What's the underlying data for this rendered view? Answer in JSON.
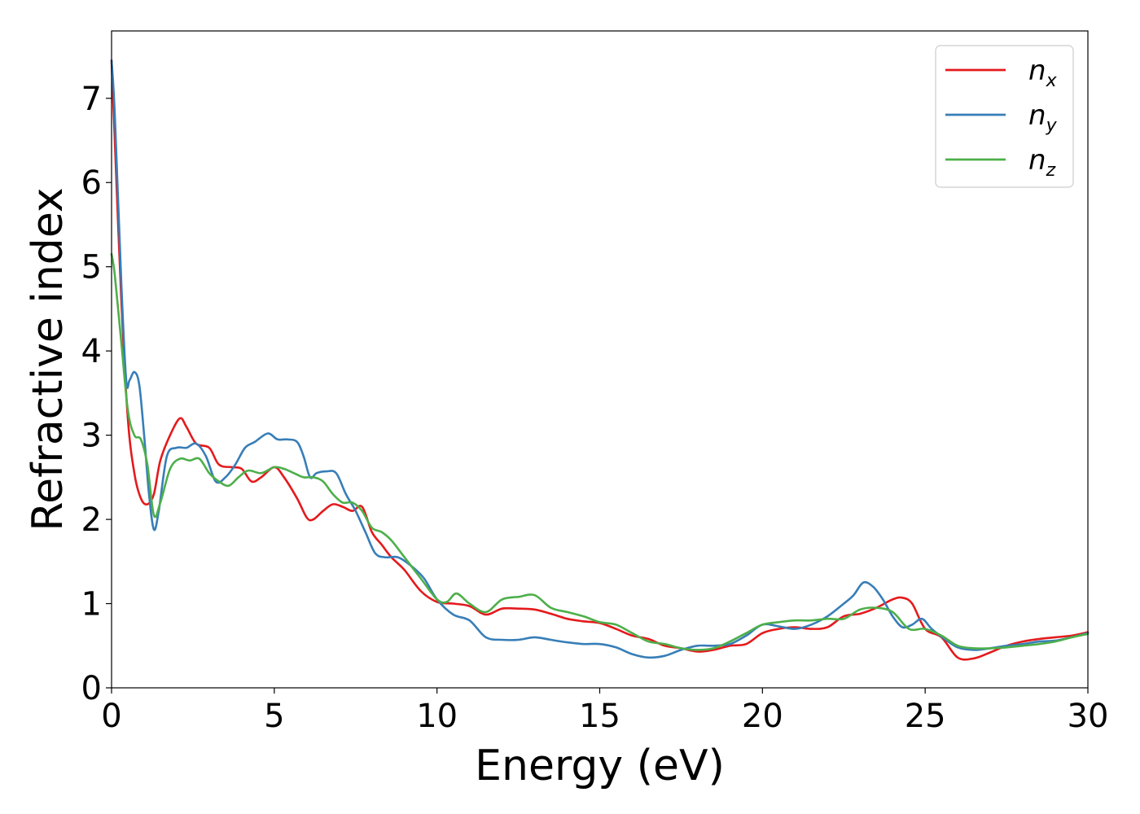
{
  "chart_data": {
    "type": "line",
    "title": "",
    "xlabel": "Energy (eV)",
    "ylabel": "Refractive index",
    "xlim": [
      0,
      30
    ],
    "ylim": [
      0,
      7.8
    ],
    "xticks": [
      0,
      5,
      10,
      15,
      20,
      25,
      30
    ],
    "yticks": [
      0,
      1,
      2,
      3,
      4,
      5,
      6,
      7
    ],
    "grid": false,
    "legend_position": "top-right",
    "series": [
      {
        "name": "n",
        "subscript": "x",
        "color": "#e41a1c",
        "x": [
          0,
          0.1,
          0.3,
          0.5,
          0.7,
          0.9,
          1.1,
          1.3,
          1.5,
          1.8,
          2.1,
          2.3,
          2.6,
          3.0,
          3.3,
          3.7,
          4.0,
          4.3,
          4.6,
          5.0,
          5.3,
          5.7,
          6.0,
          6.2,
          6.5,
          6.8,
          7.1,
          7.4,
          7.7,
          8.0,
          8.3,
          8.6,
          9.0,
          9.5,
          10.0,
          10.5,
          11.0,
          11.5,
          12.0,
          12.5,
          13.0,
          13.5,
          14.0,
          14.5,
          15.0,
          15.5,
          16.0,
          16.5,
          17.0,
          17.5,
          18.0,
          18.5,
          19.0,
          19.5,
          20.0,
          20.5,
          21.0,
          21.5,
          22.0,
          22.5,
          23.0,
          23.5,
          24.0,
          24.3,
          24.6,
          25.0,
          25.5,
          26.0,
          26.5,
          27.0,
          27.5,
          28.0,
          28.5,
          29.0,
          29.5,
          30.0
        ],
        "y": [
          7.45,
          6.5,
          4.6,
          3.2,
          2.55,
          2.25,
          2.18,
          2.3,
          2.7,
          3.0,
          3.2,
          3.1,
          2.9,
          2.85,
          2.65,
          2.62,
          2.6,
          2.45,
          2.5,
          2.62,
          2.5,
          2.25,
          2.02,
          2.0,
          2.1,
          2.18,
          2.15,
          2.1,
          2.15,
          1.85,
          1.7,
          1.55,
          1.4,
          1.15,
          1.02,
          1.0,
          0.97,
          0.87,
          0.94,
          0.94,
          0.93,
          0.88,
          0.82,
          0.79,
          0.77,
          0.7,
          0.62,
          0.58,
          0.5,
          0.47,
          0.43,
          0.45,
          0.5,
          0.52,
          0.65,
          0.7,
          0.72,
          0.7,
          0.72,
          0.85,
          0.88,
          0.95,
          1.05,
          1.07,
          1.0,
          0.7,
          0.6,
          0.36,
          0.35,
          0.42,
          0.5,
          0.55,
          0.58,
          0.6,
          0.62,
          0.66
        ]
      },
      {
        "name": "n",
        "subscript": "y",
        "color": "#377eb8",
        "x": [
          0,
          0.1,
          0.3,
          0.45,
          0.55,
          0.7,
          0.85,
          1.0,
          1.15,
          1.3,
          1.45,
          1.7,
          2.0,
          2.3,
          2.6,
          2.9,
          3.2,
          3.5,
          3.8,
          4.1,
          4.4,
          4.8,
          5.1,
          5.4,
          5.7,
          5.9,
          6.1,
          6.3,
          6.6,
          6.9,
          7.2,
          7.5,
          7.8,
          8.1,
          8.4,
          8.8,
          9.2,
          9.6,
          10.0,
          10.5,
          11.0,
          11.5,
          12.0,
          12.5,
          13.0,
          13.5,
          14.0,
          14.5,
          15.0,
          15.5,
          16.0,
          16.5,
          17.0,
          17.5,
          18.0,
          18.5,
          19.0,
          19.5,
          20.0,
          20.5,
          21.0,
          21.5,
          22.0,
          22.5,
          22.8,
          23.1,
          23.4,
          23.7,
          24.0,
          24.3,
          24.6,
          24.9,
          25.2,
          25.6,
          26.0,
          26.5,
          27.0,
          27.5,
          28.0,
          28.5,
          29.0,
          29.5,
          30.0
        ],
        "y": [
          7.45,
          6.8,
          4.8,
          3.65,
          3.65,
          3.75,
          3.6,
          3.0,
          2.3,
          1.88,
          2.1,
          2.75,
          2.85,
          2.85,
          2.9,
          2.75,
          2.45,
          2.5,
          2.65,
          2.85,
          2.92,
          3.02,
          2.95,
          2.95,
          2.92,
          2.75,
          2.5,
          2.55,
          2.57,
          2.55,
          2.3,
          2.1,
          1.85,
          1.6,
          1.55,
          1.55,
          1.45,
          1.3,
          1.05,
          0.87,
          0.8,
          0.6,
          0.57,
          0.57,
          0.6,
          0.57,
          0.54,
          0.52,
          0.52,
          0.48,
          0.4,
          0.36,
          0.38,
          0.45,
          0.5,
          0.5,
          0.52,
          0.62,
          0.75,
          0.73,
          0.7,
          0.75,
          0.85,
          1.0,
          1.1,
          1.25,
          1.2,
          1.05,
          0.85,
          0.72,
          0.75,
          0.82,
          0.7,
          0.58,
          0.48,
          0.45,
          0.47,
          0.5,
          0.52,
          0.55,
          0.56,
          0.6,
          0.65
        ]
      },
      {
        "name": "n",
        "subscript": "z",
        "color": "#4daf4a",
        "x": [
          0,
          0.1,
          0.3,
          0.5,
          0.7,
          0.9,
          1.1,
          1.3,
          1.5,
          1.8,
          2.1,
          2.4,
          2.7,
          3.0,
          3.3,
          3.6,
          3.9,
          4.2,
          4.6,
          5.0,
          5.3,
          5.6,
          5.9,
          6.2,
          6.5,
          6.8,
          7.1,
          7.4,
          7.7,
          8.0,
          8.3,
          8.6,
          9.0,
          9.5,
          10.0,
          10.3,
          10.6,
          11.0,
          11.5,
          12.0,
          12.5,
          13.0,
          13.5,
          14.0,
          14.5,
          15.0,
          15.5,
          16.0,
          16.5,
          17.0,
          17.5,
          18.0,
          18.5,
          19.0,
          19.5,
          20.0,
          20.5,
          21.0,
          21.5,
          22.0,
          22.5,
          23.0,
          23.5,
          24.0,
          24.5,
          25.0,
          25.5,
          26.0,
          26.5,
          27.0,
          27.5,
          28.0,
          28.5,
          29.0,
          29.5,
          30.0
        ],
        "y": [
          5.15,
          4.9,
          4.1,
          3.3,
          3.0,
          2.95,
          2.65,
          2.05,
          2.2,
          2.6,
          2.72,
          2.7,
          2.72,
          2.55,
          2.45,
          2.4,
          2.5,
          2.58,
          2.55,
          2.62,
          2.6,
          2.55,
          2.5,
          2.5,
          2.45,
          2.3,
          2.2,
          2.2,
          2.1,
          1.9,
          1.85,
          1.75,
          1.55,
          1.3,
          1.05,
          1.02,
          1.12,
          1.0,
          0.9,
          1.05,
          1.08,
          1.1,
          0.95,
          0.9,
          0.85,
          0.78,
          0.75,
          0.65,
          0.55,
          0.52,
          0.47,
          0.45,
          0.47,
          0.55,
          0.65,
          0.75,
          0.78,
          0.8,
          0.8,
          0.82,
          0.82,
          0.93,
          0.95,
          0.9,
          0.7,
          0.7,
          0.62,
          0.5,
          0.47,
          0.47,
          0.48,
          0.5,
          0.52,
          0.55,
          0.6,
          0.64
        ]
      }
    ]
  }
}
